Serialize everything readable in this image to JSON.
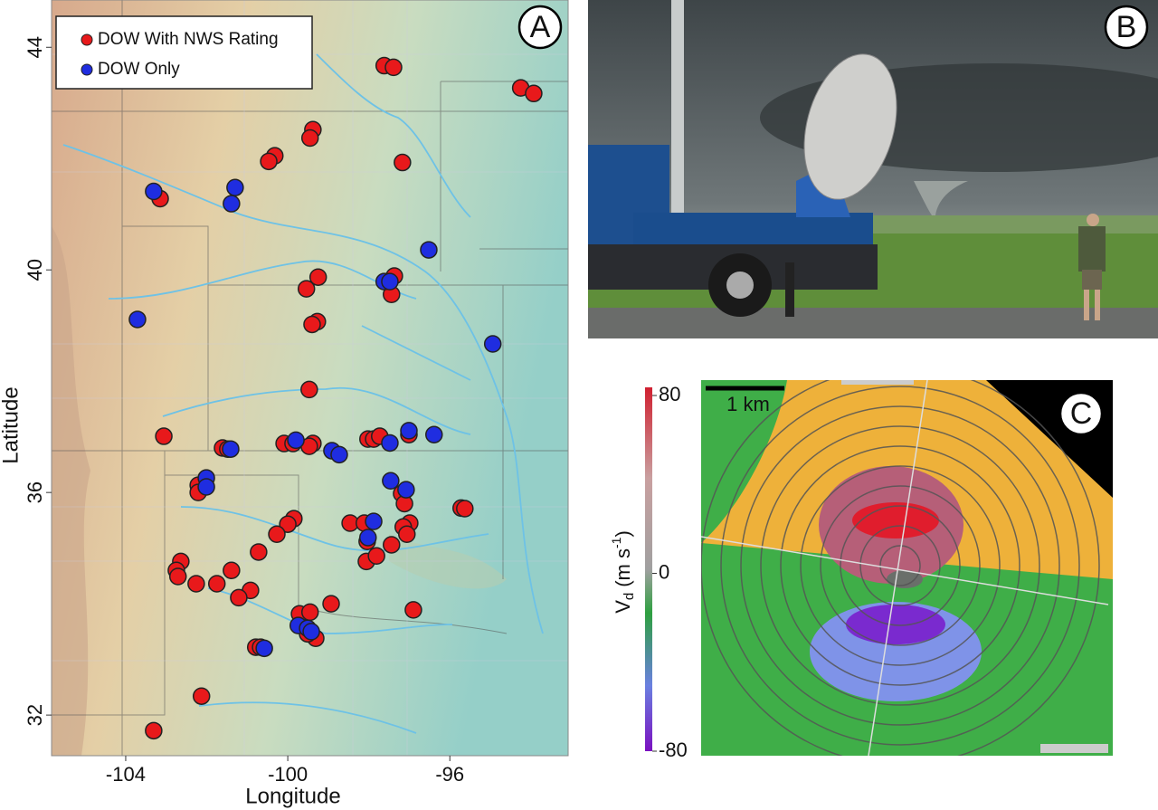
{
  "chart_data": {
    "type": "scatter",
    "xlabel": "Longitude",
    "ylabel": "Latitude",
    "xlim": [
      -105.83,
      -93.08
    ],
    "ylim": [
      31.27,
      44.85
    ],
    "xticks": [
      -104,
      -100,
      -96
    ],
    "yticks": [
      44,
      40,
      36,
      32
    ],
    "legend": "upper left",
    "series": [
      {
        "name": "DOW With NWS Rating",
        "color": "#e8191b",
        "x": [
          -97.62,
          -97.39,
          -94.25,
          -93.93,
          -99.38,
          -99.45,
          -100.32,
          -100.47,
          -97.17,
          -103.15,
          -99.25,
          -99.54,
          -97.37,
          -97.44,
          -99.27,
          -99.4,
          -99.47,
          -103.06,
          -101.61,
          -101.48,
          -100.09,
          -99.87,
          -99.38,
          -99.47,
          -98.02,
          -97.88,
          -97.73,
          -97.01,
          -102.21,
          -102.21,
          -97.19,
          -97.12,
          -95.72,
          -95.63,
          -99.85,
          -100.0,
          -100.27,
          -98.46,
          -98.11,
          -96.99,
          -97.15,
          -97.06,
          -98.04,
          -97.44,
          -100.72,
          -98.06,
          -97.81,
          -102.64,
          -102.75,
          -102.71,
          -101.39,
          -102.26,
          -101.75,
          -100.92,
          -101.21,
          -98.93,
          -96.9,
          -99.71,
          -99.45,
          -99.31,
          -99.51,
          -100.79,
          -100.67,
          -102.13,
          -103.31
        ],
        "y": [
          43.67,
          43.64,
          43.27,
          43.17,
          42.52,
          42.37,
          42.05,
          41.95,
          41.93,
          41.28,
          39.87,
          39.66,
          39.89,
          39.56,
          39.07,
          39.02,
          37.85,
          37.01,
          36.8,
          36.78,
          36.88,
          36.88,
          36.88,
          36.83,
          36.96,
          36.96,
          37.01,
          37.04,
          36.13,
          36.0,
          35.98,
          35.8,
          35.72,
          35.71,
          35.53,
          35.43,
          35.25,
          35.45,
          35.45,
          35.45,
          35.38,
          35.25,
          35.12,
          35.06,
          34.93,
          34.76,
          34.86,
          34.76,
          34.6,
          34.49,
          34.6,
          34.36,
          34.36,
          34.24,
          34.11,
          34.0,
          33.89,
          33.82,
          33.85,
          33.38,
          33.46,
          33.22,
          33.22,
          32.34,
          31.72
        ]
      },
      {
        "name": "DOW Only",
        "color": "#1f2de0",
        "x": [
          -103.31,
          -101.3,
          -101.39,
          -96.52,
          -97.62,
          -97.48,
          -103.71,
          -94.94,
          -101.41,
          -99.8,
          -98.91,
          -98.73,
          -97.48,
          -97.01,
          -96.39,
          -102.01,
          -102.01,
          -97.46,
          -97.08,
          -97.88,
          -98.02,
          -99.74,
          -99.51,
          -99.42,
          -100.58
        ],
        "y": [
          41.41,
          41.48,
          41.19,
          40.36,
          39.79,
          39.79,
          39.11,
          38.67,
          36.78,
          36.94,
          36.75,
          36.68,
          36.89,
          37.11,
          37.04,
          36.26,
          36.1,
          36.21,
          36.05,
          35.48,
          35.19,
          33.61,
          33.56,
          33.5,
          33.2
        ]
      }
    ]
  },
  "panels": {
    "a": "A",
    "b": "B",
    "c": "C"
  },
  "radar": {
    "scale_bar": "1 km",
    "colorbar": {
      "lim": [
        -80,
        80
      ],
      "ticks": [
        80,
        0,
        -80
      ]
    },
    "label": {
      "symbol": "V",
      "subscript": "d",
      "unit": "(m s",
      "exponent": "-1",
      "close": ")"
    }
  }
}
